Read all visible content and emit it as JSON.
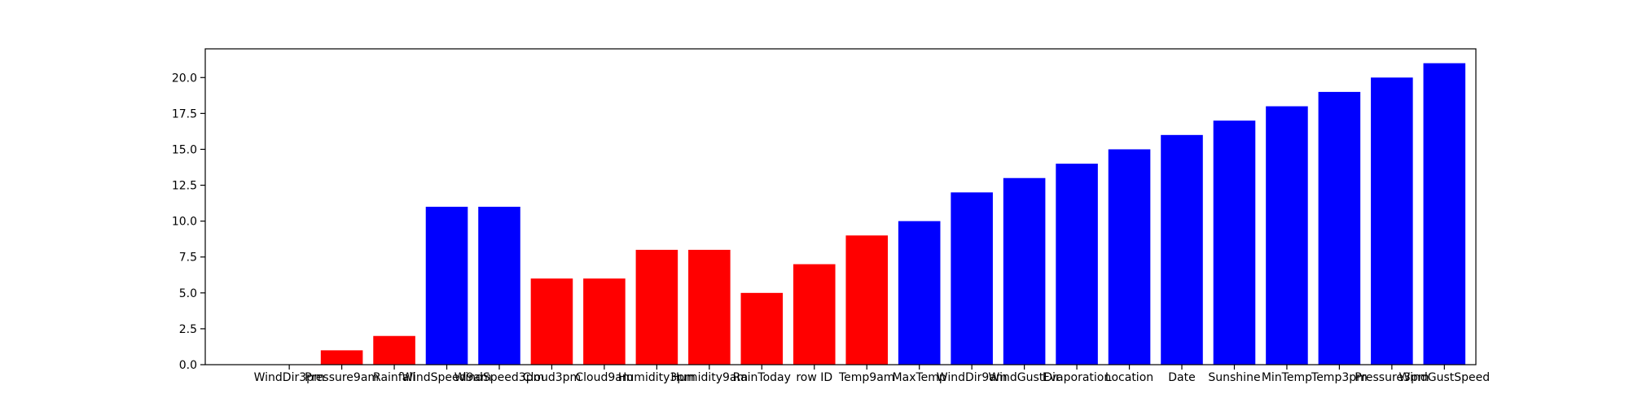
{
  "chart_data": {
    "type": "bar",
    "title": "",
    "xlabel": "",
    "ylabel": "",
    "ylim": [
      0,
      22
    ],
    "yticks": [
      0.0,
      2.5,
      5.0,
      7.5,
      10.0,
      12.5,
      15.0,
      17.5,
      20.0
    ],
    "ytick_labels": [
      "0.0",
      "2.5",
      "5.0",
      "7.5",
      "10.0",
      "12.5",
      "15.0",
      "17.5",
      "20.0"
    ],
    "grid": false,
    "categories": [
      "WindDir3pm",
      "Pressure9am",
      "Rainfall",
      "WindSpeed9am",
      "WindSpeed3pm",
      "Cloud3pm",
      "Cloud9am",
      "Humidity3pm",
      "Humidity9am",
      "RainToday",
      "row ID",
      "Temp9am",
      "MaxTemp",
      "WindDir9am",
      "WindGustDir",
      "Evaporation",
      "Location",
      "Date",
      "Sunshine",
      "MinTemp",
      "Temp3pm",
      "Pressure3pm",
      "WindGustSpeed"
    ],
    "values": [
      0,
      1,
      2,
      11,
      11,
      6,
      6,
      8,
      8,
      5,
      7,
      9,
      10,
      12,
      13,
      14,
      15,
      16,
      17,
      18,
      19,
      20,
      21
    ],
    "bar_colors": [
      "#ff0000",
      "#ff0000",
      "#ff0000",
      "#0000ff",
      "#0000ff",
      "#ff0000",
      "#ff0000",
      "#ff0000",
      "#ff0000",
      "#ff0000",
      "#ff0000",
      "#ff0000",
      "#0000ff",
      "#0000ff",
      "#0000ff",
      "#0000ff",
      "#0000ff",
      "#0000ff",
      "#0000ff",
      "#0000ff",
      "#0000ff",
      "#0000ff",
      "#0000ff"
    ]
  }
}
